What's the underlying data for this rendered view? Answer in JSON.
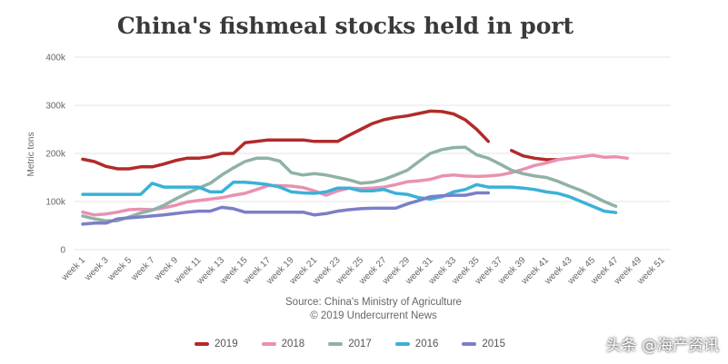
{
  "title": "China's fishmeal stocks held in port",
  "source_line1": "Source: China's Ministry of Agriculture",
  "source_line2": "© 2019 Undercurrent News",
  "watermark": "头条 @海产资讯",
  "chart_data": {
    "type": "line",
    "title": "China's fishmeal stocks held in port",
    "ylabel": "Metric tons",
    "xlabel": "",
    "ylim": [
      0,
      400000
    ],
    "yticks": [
      0,
      100000,
      200000,
      300000,
      400000
    ],
    "ytick_labels": [
      "0",
      "100k",
      "200k",
      "300k",
      "400k"
    ],
    "grid": "horizontal",
    "legend_position": "bottom",
    "x": [
      1,
      2,
      3,
      4,
      5,
      6,
      7,
      8,
      9,
      10,
      11,
      12,
      13,
      14,
      15,
      16,
      17,
      18,
      19,
      20,
      21,
      22,
      23,
      24,
      25,
      26,
      27,
      28,
      29,
      30,
      31,
      32,
      33,
      34,
      35,
      36,
      37,
      38,
      39,
      40,
      41,
      42,
      43,
      44,
      45,
      46,
      47,
      48,
      49,
      50,
      51,
      52
    ],
    "xtick_labels": [
      "week 1",
      "week 3",
      "week 5",
      "week 7",
      "week 9",
      "week 11",
      "week 13",
      "week 15",
      "week 17",
      "week 19",
      "week 21",
      "week 23",
      "week 25",
      "week 27",
      "week 29",
      "week 31",
      "week 33",
      "week 35",
      "week 37",
      "week 39",
      "week 41",
      "week 43",
      "week 45",
      "week 47",
      "week 49",
      "week 51"
    ],
    "series": [
      {
        "name": "2019",
        "color": "#b22a2a",
        "values": [
          188000,
          183000,
          173000,
          168000,
          168000,
          172000,
          172000,
          178000,
          185000,
          190000,
          190000,
          193000,
          200000,
          200000,
          222000,
          225000,
          228000,
          228000,
          228000,
          228000,
          225000,
          225000,
          225000,
          238000,
          250000,
          262000,
          270000,
          275000,
          278000,
          283000,
          288000,
          287000,
          282000,
          270000,
          250000,
          225000,
          null,
          206000,
          195000,
          190000,
          187000,
          187000,
          null,
          null,
          null,
          null,
          null,
          null,
          null,
          null,
          null,
          null
        ]
      },
      {
        "name": "2018",
        "color": "#e991b3",
        "values": [
          78000,
          72000,
          74000,
          78000,
          83000,
          84000,
          83000,
          87000,
          92000,
          99000,
          102000,
          105000,
          108000,
          113000,
          117000,
          125000,
          133000,
          133000,
          132000,
          129000,
          122000,
          113000,
          122000,
          128000,
          127000,
          128000,
          130000,
          135000,
          141000,
          143000,
          146000,
          153000,
          155000,
          153000,
          152000,
          153000,
          155000,
          160000,
          167000,
          175000,
          180000,
          187000,
          190000,
          193000,
          196000,
          192000,
          193000,
          190000,
          null,
          null,
          null,
          null
        ]
      },
      {
        "name": "2017",
        "color": "#8fb2a6",
        "values": [
          70000,
          64000,
          60000,
          60000,
          68000,
          76000,
          82000,
          92000,
          105000,
          117000,
          128000,
          138000,
          155000,
          170000,
          183000,
          190000,
          190000,
          184000,
          160000,
          155000,
          158000,
          155000,
          150000,
          145000,
          138000,
          140000,
          146000,
          155000,
          165000,
          183000,
          200000,
          208000,
          212000,
          213000,
          197000,
          190000,
          178000,
          165000,
          158000,
          153000,
          150000,
          142000,
          132000,
          123000,
          112000,
          100000,
          90000,
          null,
          null,
          null,
          null,
          null
        ]
      },
      {
        "name": "2016",
        "color": "#3ab1d8",
        "values": [
          115000,
          115000,
          115000,
          115000,
          115000,
          115000,
          138000,
          130000,
          130000,
          130000,
          130000,
          120000,
          120000,
          140000,
          140000,
          138000,
          135000,
          130000,
          120000,
          118000,
          117000,
          120000,
          128000,
          128000,
          122000,
          122000,
          125000,
          117000,
          115000,
          108000,
          105000,
          110000,
          120000,
          125000,
          135000,
          130000,
          130000,
          130000,
          128000,
          125000,
          120000,
          117000,
          110000,
          100000,
          90000,
          80000,
          77000,
          null,
          null,
          null,
          null,
          null
        ]
      },
      {
        "name": "2015",
        "color": "#7b7fc7",
        "values": [
          53000,
          55000,
          55000,
          64000,
          66000,
          68000,
          70000,
          72000,
          75000,
          78000,
          80000,
          80000,
          88000,
          85000,
          78000,
          78000,
          78000,
          78000,
          78000,
          78000,
          72000,
          75000,
          80000,
          83000,
          85000,
          86000,
          86000,
          86000,
          95000,
          102000,
          110000,
          112000,
          113000,
          113000,
          118000,
          118000,
          null,
          null,
          null,
          null,
          null,
          null,
          null,
          null,
          null,
          null,
          null,
          null,
          null,
          null,
          null,
          null
        ]
      }
    ]
  }
}
